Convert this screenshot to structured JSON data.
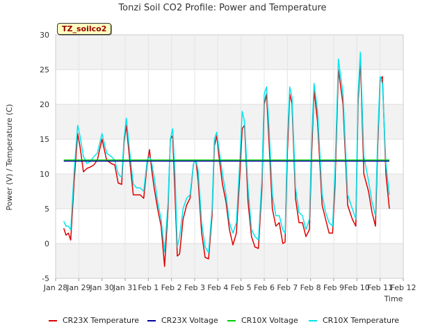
{
  "chart_data": {
    "type": "line",
    "title": "Tonzi Soil CO2 Profile: Power and Temperature",
    "site_label": "TZ_soilco2",
    "xlabel": "Time",
    "ylabel": "Power (V) / Temperature (C)",
    "xlim": [
      0,
      15
    ],
    "ylim": [
      -5,
      30
    ],
    "x_ticks": [
      {
        "value": 0,
        "label": "Jan 28"
      },
      {
        "value": 1,
        "label": "Jan 29"
      },
      {
        "value": 2,
        "label": "Jan 30"
      },
      {
        "value": 3,
        "label": "Jan 31"
      },
      {
        "value": 4,
        "label": "Feb 1"
      },
      {
        "value": 5,
        "label": "Feb 2"
      },
      {
        "value": 6,
        "label": "Feb 3"
      },
      {
        "value": 7,
        "label": "Feb 4"
      },
      {
        "value": 8,
        "label": "Feb 5"
      },
      {
        "value": 9,
        "label": "Feb 6"
      },
      {
        "value": 10,
        "label": "Feb 7"
      },
      {
        "value": 11,
        "label": "Feb 8"
      },
      {
        "value": 12,
        "label": "Feb 9"
      },
      {
        "value": 13,
        "label": "Feb 10"
      },
      {
        "value": 14,
        "label": "Feb 11"
      },
      {
        "value": 15,
        "label": "Feb 12"
      }
    ],
    "y_ticks": [
      -5,
      0,
      5,
      10,
      15,
      20,
      25,
      30
    ],
    "grid": true,
    "legend_position": "bottom",
    "series": [
      {
        "name": "CR23X Temperature",
        "color": "#dd0000",
        "x": [
          0.35,
          0.45,
          0.55,
          0.65,
          0.8,
          0.95,
          1.05,
          1.2,
          1.35,
          1.5,
          1.65,
          1.8,
          2.0,
          2.2,
          2.4,
          2.55,
          2.7,
          2.85,
          2.95,
          3.05,
          3.2,
          3.35,
          3.5,
          3.65,
          3.8,
          3.95,
          4.05,
          4.15,
          4.25,
          4.4,
          4.55,
          4.7,
          4.85,
          4.95,
          5.05,
          5.15,
          5.25,
          5.35,
          5.5,
          5.65,
          5.8,
          5.95,
          6.05,
          6.15,
          6.3,
          6.45,
          6.6,
          6.75,
          6.85,
          6.95,
          7.05,
          7.2,
          7.35,
          7.5,
          7.65,
          7.8,
          7.95,
          8.05,
          8.15,
          8.3,
          8.45,
          8.6,
          8.75,
          8.9,
          9.0,
          9.1,
          9.2,
          9.35,
          9.5,
          9.65,
          9.8,
          9.9,
          10.0,
          10.1,
          10.2,
          10.35,
          10.5,
          10.65,
          10.8,
          10.95,
          11.05,
          11.15,
          11.3,
          11.5,
          11.65,
          11.8,
          11.95,
          12.05,
          12.2,
          12.4,
          12.6,
          12.8,
          12.95,
          13.05,
          13.15,
          13.3,
          13.5,
          13.65,
          13.8,
          13.9,
          14.0,
          14.1,
          14.25,
          14.4
        ],
        "y": [
          2.2,
          1.2,
          1.5,
          0.5,
          9.0,
          15.8,
          14.0,
          10.3,
          10.8,
          11.0,
          11.3,
          12.0,
          15.0,
          12.0,
          11.5,
          11.3,
          8.7,
          8.5,
          14.5,
          17.0,
          11.8,
          7.0,
          7.0,
          7.0,
          6.5,
          11.5,
          13.5,
          10.5,
          8.0,
          5.0,
          2.5,
          -3.3,
          5.0,
          15.0,
          15.5,
          7.0,
          -1.8,
          -1.5,
          3.5,
          5.5,
          6.5,
          11.5,
          12.0,
          9.0,
          1.5,
          -2.0,
          -2.2,
          4.0,
          14.0,
          15.5,
          12.5,
          8.5,
          6.0,
          2.0,
          -0.2,
          1.5,
          10.0,
          16.5,
          17.0,
          6.0,
          1.0,
          -0.5,
          -0.7,
          8.0,
          20.0,
          21.5,
          15.0,
          5.0,
          2.5,
          3.0,
          0.0,
          0.2,
          13.0,
          21.5,
          20.0,
          6.5,
          3.0,
          3.0,
          1.0,
          2.0,
          13.0,
          22.0,
          17.5,
          5.5,
          3.5,
          1.5,
          1.5,
          8.0,
          25.0,
          20.0,
          5.5,
          3.5,
          2.5,
          20.0,
          26.5,
          10.0,
          7.5,
          4.5,
          2.5,
          14.0,
          23.5,
          24.0,
          10.0,
          5.0
        ]
      },
      {
        "name": "CR23X Voltage",
        "color": "#000099",
        "x": [
          0.35,
          14.4
        ],
        "y": [
          11.85,
          11.85
        ]
      },
      {
        "name": "CR10X Voltage",
        "color": "#00cc00",
        "x": [
          0.35,
          14.4
        ],
        "y": [
          12.0,
          12.0
        ]
      },
      {
        "name": "CR10X Temperature",
        "color": "#00e5ee",
        "x": [
          0.35,
          0.45,
          0.55,
          0.65,
          0.8,
          0.95,
          1.05,
          1.2,
          1.35,
          1.5,
          1.65,
          1.8,
          2.0,
          2.2,
          2.4,
          2.55,
          2.7,
          2.85,
          2.95,
          3.05,
          3.2,
          3.35,
          3.5,
          3.65,
          3.8,
          3.95,
          4.05,
          4.15,
          4.25,
          4.4,
          4.55,
          4.7,
          4.85,
          4.95,
          5.05,
          5.15,
          5.25,
          5.35,
          5.5,
          5.65,
          5.8,
          5.95,
          6.05,
          6.15,
          6.3,
          6.45,
          6.6,
          6.75,
          6.85,
          6.95,
          7.05,
          7.2,
          7.35,
          7.5,
          7.65,
          7.8,
          7.95,
          8.05,
          8.15,
          8.3,
          8.45,
          8.6,
          8.75,
          8.9,
          9.0,
          9.1,
          9.2,
          9.35,
          9.5,
          9.65,
          9.8,
          9.9,
          10.0,
          10.1,
          10.2,
          10.35,
          10.5,
          10.65,
          10.8,
          10.95,
          11.05,
          11.15,
          11.3,
          11.5,
          11.65,
          11.8,
          11.95,
          12.05,
          12.2,
          12.4,
          12.6,
          12.8,
          12.95,
          13.05,
          13.15,
          13.3,
          13.5,
          13.65,
          13.8,
          13.9,
          14.0,
          14.1,
          14.25,
          14.4
        ],
        "y": [
          3.2,
          2.5,
          2.5,
          2.0,
          10.5,
          17.0,
          15.5,
          12.5,
          11.5,
          11.8,
          12.5,
          13.0,
          15.8,
          13.0,
          12.5,
          12.0,
          10.0,
          9.5,
          15.0,
          18.0,
          13.0,
          8.5,
          8.0,
          8.0,
          7.5,
          12.0,
          12.5,
          11.5,
          9.5,
          6.0,
          3.5,
          -1.2,
          6.0,
          15.0,
          16.5,
          10.0,
          -0.5,
          1.0,
          5.0,
          6.5,
          7.0,
          11.5,
          12.0,
          10.5,
          3.0,
          -0.5,
          -1.3,
          5.0,
          15.0,
          16.0,
          13.5,
          10.0,
          7.0,
          3.0,
          1.5,
          3.0,
          12.0,
          19.0,
          17.5,
          8.0,
          2.0,
          1.0,
          0.5,
          9.5,
          21.5,
          22.5,
          17.0,
          7.0,
          4.0,
          4.0,
          2.0,
          1.5,
          15.0,
          22.5,
          21.0,
          8.0,
          4.5,
          4.0,
          2.0,
          3.5,
          15.0,
          23.0,
          19.0,
          7.0,
          4.5,
          3.0,
          2.5,
          10.0,
          26.5,
          21.5,
          7.0,
          5.0,
          3.5,
          21.5,
          27.5,
          12.5,
          9.0,
          6.0,
          4.0,
          15.5,
          24.0,
          23.0,
          11.5,
          7.0
        ]
      }
    ]
  }
}
